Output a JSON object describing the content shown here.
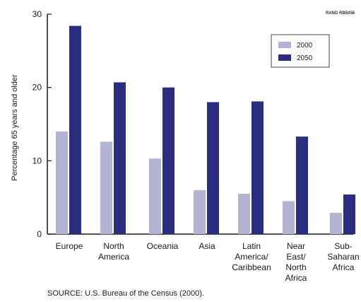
{
  "chart_data": {
    "type": "bar",
    "title": "",
    "xlabel": "",
    "ylabel": "Percentage 65 years and older",
    "ylim": [
      0,
      30
    ],
    "yticks": [
      0,
      10,
      20,
      30
    ],
    "grid": false,
    "legend_position": "top-right",
    "categories": [
      [
        "Europe"
      ],
      [
        "North",
        "America"
      ],
      [
        "Oceania"
      ],
      [
        "Asia"
      ],
      [
        "Latin",
        "America/",
        "Caribbean"
      ],
      [
        "Near",
        "East/",
        "North",
        "Africa"
      ],
      [
        "Sub-",
        "Saharan",
        "Africa"
      ]
    ],
    "series": [
      {
        "name": "2000",
        "color": "#b3b3d3",
        "values": [
          14.0,
          12.6,
          10.3,
          6.0,
          5.5,
          4.5,
          2.9
        ]
      },
      {
        "name": "2050",
        "color": "#2a2e80",
        "values": [
          28.4,
          20.7,
          20.0,
          18.0,
          18.1,
          13.3,
          5.4
        ]
      }
    ],
    "tag": "RAND RB5058",
    "source": "SOURCE:  U.S. Bureau of the Census (2000)."
  }
}
